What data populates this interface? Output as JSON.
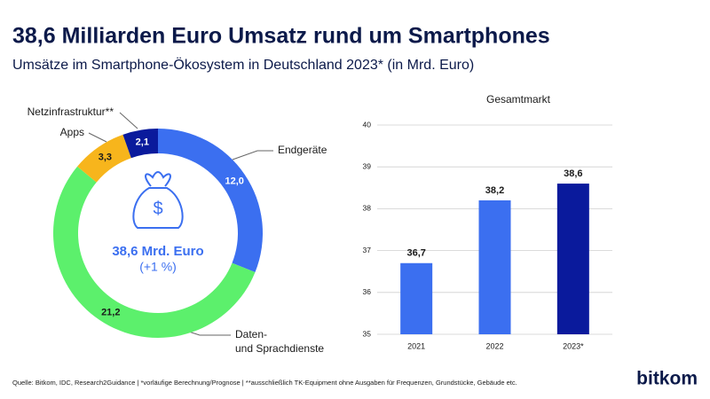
{
  "title": "38,6 Milliarden Euro Umsatz rund um Smartphones",
  "subtitle": "Umsätze im Smartphone-Ökosystem in Deutschland 2023* (in Mrd. Euro)",
  "chart_data": [
    {
      "type": "donut",
      "categories": [
        "Endgeräte",
        "Daten- und Sprachdienste",
        "Apps",
        "Netzinfrastruktur**"
      ],
      "values": [
        12.0,
        21.2,
        3.3,
        2.1
      ],
      "value_labels": [
        "12,0",
        "21,2",
        "3,3",
        "2,1"
      ],
      "colors": [
        "#3b6ff0",
        "#5cf06c",
        "#f7b51c",
        "#0a1a9c"
      ],
      "center_label": "38,6 Mrd. Euro",
      "center_sublabel": "(+1 %)"
    },
    {
      "type": "bar",
      "title": "Gesamtmarkt",
      "categories": [
        "2021",
        "2022",
        "2023*"
      ],
      "values": [
        36.7,
        38.2,
        38.6
      ],
      "value_labels": [
        "36,7",
        "38,2",
        "38,6"
      ],
      "colors": [
        "#3b6ff0",
        "#3b6ff0",
        "#0a1a9c"
      ],
      "ylim": [
        35,
        40
      ],
      "yticks": [
        35,
        36,
        37,
        38,
        39,
        40
      ],
      "grid": true
    }
  ],
  "source": "Quelle: Bitkom, IDC, Research2Guidance  | *vorläufige Berechnung/Prognose | **ausschließlich TK-Equipment ohne Ausgaben für Frequenzen, Grundstücke, Gebäude etc.",
  "logo": "bitkom"
}
